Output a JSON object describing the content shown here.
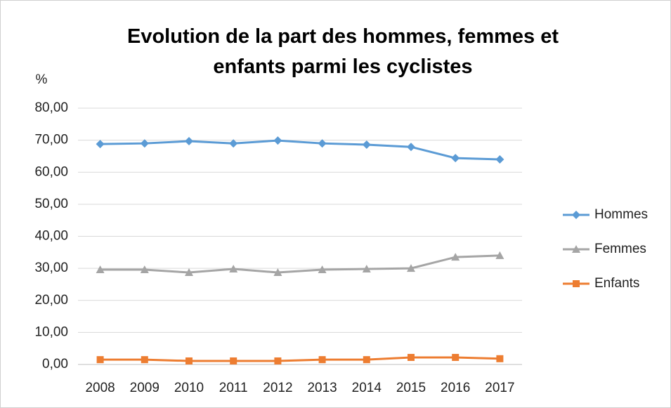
{
  "chart_data": {
    "type": "line",
    "title": "Evolution de la part des hommes, femmes et enfants parmi les cyclistes",
    "y_label": "%",
    "categories": [
      "2008",
      "2009",
      "2010",
      "2011",
      "2012",
      "2013",
      "2014",
      "2015",
      "2016",
      "2017"
    ],
    "series": [
      {
        "name": "Hommes",
        "color": "#5b9bd5",
        "marker": "diamond",
        "values": [
          68.8,
          69.0,
          69.7,
          69.0,
          69.9,
          69.0,
          68.6,
          67.9,
          64.4,
          64.0
        ]
      },
      {
        "name": "Femmes",
        "color": "#a5a5a5",
        "marker": "triangle",
        "values": [
          29.6,
          29.6,
          28.7,
          29.8,
          28.7,
          29.6,
          29.8,
          30.0,
          33.5,
          34.0
        ]
      },
      {
        "name": "Enfants",
        "color": "#ed7d31",
        "marker": "square",
        "values": [
          1.5,
          1.5,
          1.1,
          1.1,
          1.1,
          1.5,
          1.5,
          2.2,
          2.2,
          1.8
        ]
      }
    ],
    "ylim": [
      0,
      80
    ],
    "yticks": [
      {
        "value": 0,
        "label": "0,00"
      },
      {
        "value": 10,
        "label": "10,00"
      },
      {
        "value": 20,
        "label": "20,00"
      },
      {
        "value": 30,
        "label": "30,00"
      },
      {
        "value": 40,
        "label": "40,00"
      },
      {
        "value": 50,
        "label": "50,00"
      },
      {
        "value": 60,
        "label": "60,00"
      },
      {
        "value": 70,
        "label": "70,00"
      },
      {
        "value": 80,
        "label": "80,00"
      }
    ],
    "grid": true,
    "legend": "right"
  }
}
